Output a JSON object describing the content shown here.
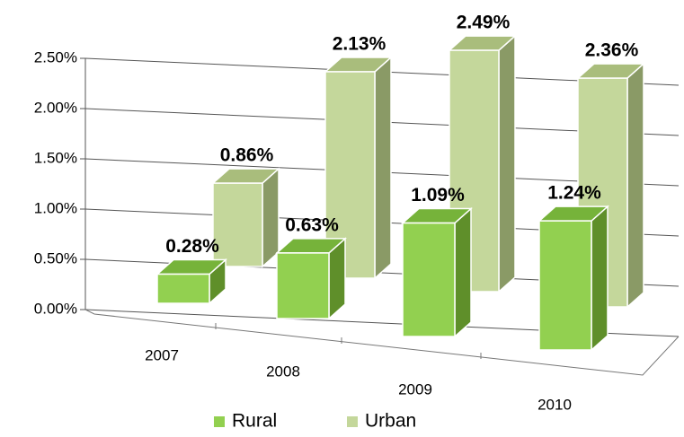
{
  "chart_data": {
    "type": "bar3d",
    "categories": [
      "2007",
      "2008",
      "2009",
      "2010"
    ],
    "series": [
      {
        "name": "Rural",
        "color": "#92d050",
        "values": [
          0.28,
          0.63,
          1.09,
          1.24
        ],
        "value_labels": [
          "0.28%",
          "0.63%",
          "1.09%",
          "1.24%"
        ]
      },
      {
        "name": "Urban",
        "color": "#c4d79b",
        "values": [
          0.86,
          2.13,
          2.49,
          2.36
        ],
        "value_labels": [
          "0.86%",
          "2.13%",
          "2.49%",
          "2.36%"
        ]
      }
    ],
    "ylim": [
      0,
      2.5
    ],
    "yticks": [
      {
        "value": 0,
        "label": "0.00%"
      },
      {
        "value": 0.5,
        "label": "0.50%"
      },
      {
        "value": 1,
        "label": "1.00%"
      },
      {
        "value": 1.5,
        "label": "1.50%"
      },
      {
        "value": 2,
        "label": "2.00%"
      },
      {
        "value": 2.5,
        "label": "2.50%"
      }
    ],
    "grid": true,
    "legend": "bottom"
  }
}
